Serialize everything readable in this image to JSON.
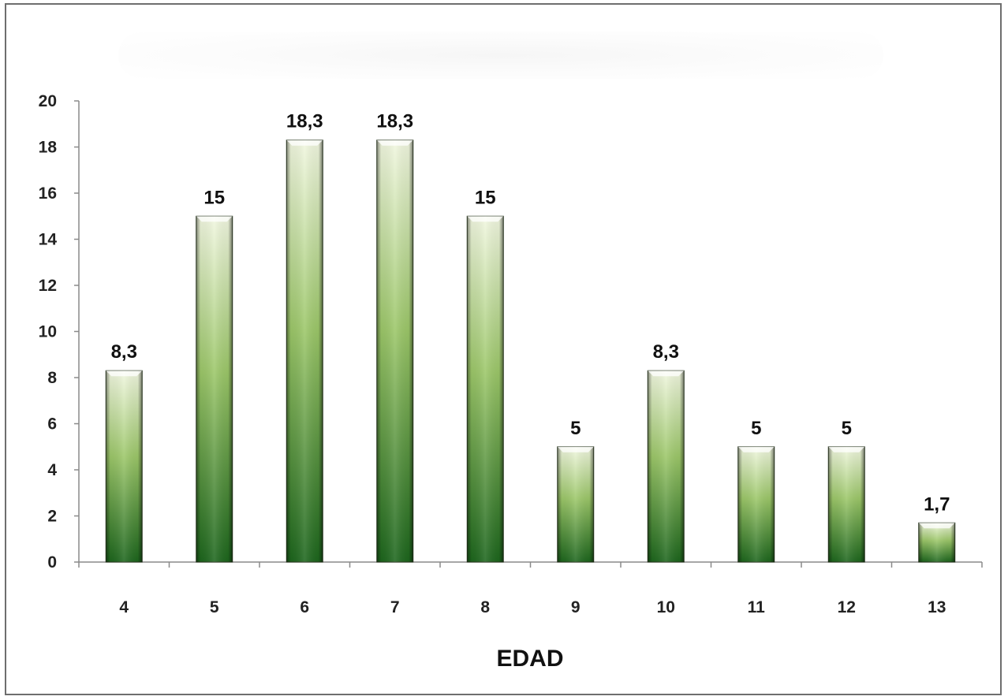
{
  "chart_data": {
    "type": "bar",
    "title": "",
    "xlabel": "EDAD",
    "ylabel": "",
    "categories": [
      "4",
      "5",
      "6",
      "7",
      "8",
      "9",
      "10",
      "11",
      "12",
      "13"
    ],
    "values": [
      8.3,
      15,
      18.3,
      18.3,
      15,
      5,
      8.3,
      5,
      5,
      1.7
    ],
    "value_labels": [
      "8,3",
      "15",
      "18,3",
      "18,3",
      "15",
      "5",
      "8,3",
      "5",
      "5",
      "1,7"
    ],
    "ylim": [
      0,
      20
    ],
    "yticks": [
      "0",
      "2",
      "4",
      "6",
      "8",
      "10",
      "12",
      "14",
      "16",
      "18",
      "20"
    ],
    "grid": false,
    "legend": "none",
    "colors": {
      "bar_top": "#eef5dc",
      "bar_mid": "#8fbf5a",
      "bar_bottom": "#1f6b1f",
      "axis": "#8a8a8a",
      "border": "#6e6e6e"
    }
  }
}
